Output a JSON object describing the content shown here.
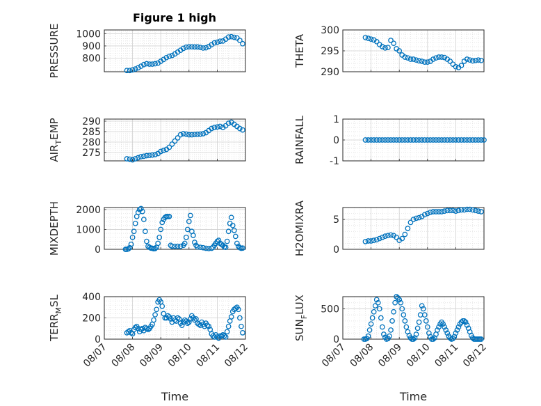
{
  "figure_title": "Figure 1 high",
  "colors": {
    "marker": "#0072BD",
    "axis": "#262626",
    "grid": "#bdbdbd"
  },
  "chart_data": [
    {
      "type": "scatter",
      "title": "Figure 1 high",
      "ylabel_parts": [
        "PRESSURE"
      ],
      "yticks": [
        800,
        900,
        1000
      ],
      "ylim": [
        690,
        1030
      ],
      "xlim": [
        0,
        5
      ],
      "xticks": [
        "08/07",
        "08/08",
        "08/09",
        "08/10",
        "08/11",
        "08/12"
      ],
      "xlabel": "",
      "x": [
        0.8,
        0.9,
        1.0,
        1.1,
        1.2,
        1.3,
        1.4,
        1.5,
        1.6,
        1.7,
        1.8,
        1.9,
        2.0,
        2.1,
        2.2,
        2.3,
        2.4,
        2.5,
        2.6,
        2.7,
        2.8,
        2.9,
        3.0,
        3.1,
        3.2,
        3.3,
        3.4,
        3.5,
        3.6,
        3.7,
        3.8,
        3.9,
        4.0,
        4.1,
        4.2,
        4.3,
        4.4,
        4.5,
        4.6,
        4.7,
        4.8,
        4.9
      ],
      "y": [
        700,
        700,
        705,
        712,
        722,
        735,
        748,
        755,
        752,
        752,
        755,
        760,
        775,
        790,
        805,
        815,
        822,
        835,
        850,
        865,
        880,
        890,
        893,
        893,
        892,
        892,
        888,
        883,
        885,
        895,
        910,
        925,
        930,
        938,
        940,
        955,
        972,
        975,
        970,
        965,
        945,
        918
      ]
    },
    {
      "type": "scatter",
      "title": "",
      "ylabel_parts": [
        "THETA"
      ],
      "yticks": [
        290,
        295,
        300
      ],
      "ylim": [
        290,
        300
      ],
      "xlim": [
        0,
        5
      ],
      "xticks": [
        "08/07",
        "08/08",
        "08/09",
        "08/10",
        "08/11",
        "08/12"
      ],
      "xlabel": "",
      "x": [
        0.8,
        0.9,
        1.0,
        1.1,
        1.2,
        1.3,
        1.4,
        1.5,
        1.6,
        1.7,
        1.8,
        1.9,
        2.0,
        2.1,
        2.2,
        2.3,
        2.4,
        2.5,
        2.6,
        2.7,
        2.8,
        2.9,
        3.0,
        3.1,
        3.2,
        3.3,
        3.4,
        3.5,
        3.6,
        3.7,
        3.8,
        3.9,
        4.0,
        4.1,
        4.2,
        4.3,
        4.4,
        4.5,
        4.6,
        4.7,
        4.8,
        4.9
      ],
      "y": [
        298.2,
        298.0,
        297.8,
        297.6,
        297.2,
        296.5,
        296.0,
        295.7,
        295.8,
        297.5,
        296.8,
        295.5,
        295.0,
        294.0,
        293.5,
        293.3,
        293.0,
        293.0,
        292.8,
        292.6,
        292.5,
        292.3,
        292.3,
        292.5,
        293.0,
        293.3,
        293.5,
        293.5,
        293.4,
        293.0,
        292.5,
        291.8,
        291.2,
        291.0,
        291.5,
        292.5,
        293.0,
        292.8,
        292.6,
        292.7,
        292.8,
        292.7
      ]
    },
    {
      "type": "scatter",
      "title": "",
      "ylabel_parts": [
        "AIR",
        "T",
        "EMP"
      ],
      "yticks": [
        275,
        280,
        285,
        290
      ],
      "ylim": [
        271,
        291
      ],
      "xlim": [
        0,
        5
      ],
      "xticks": [
        "08/07",
        "08/08",
        "08/09",
        "08/10",
        "08/11",
        "08/12"
      ],
      "xlabel": "",
      "x": [
        0.8,
        0.9,
        1.0,
        1.1,
        1.2,
        1.3,
        1.4,
        1.5,
        1.6,
        1.7,
        1.8,
        1.9,
        2.0,
        2.1,
        2.2,
        2.3,
        2.4,
        2.5,
        2.6,
        2.7,
        2.8,
        2.9,
        3.0,
        3.1,
        3.2,
        3.3,
        3.4,
        3.5,
        3.6,
        3.7,
        3.8,
        3.9,
        4.0,
        4.1,
        4.2,
        4.3,
        4.4,
        4.5,
        4.6,
        4.7,
        4.8,
        4.9
      ],
      "y": [
        272.0,
        271.8,
        271.5,
        272.0,
        272.5,
        273.0,
        273.2,
        273.5,
        273.6,
        273.8,
        274.0,
        274.5,
        275.5,
        276.0,
        276.5,
        277.5,
        279.0,
        280.5,
        282.0,
        283.5,
        284.0,
        283.8,
        283.5,
        283.5,
        283.6,
        283.7,
        283.8,
        284.0,
        284.5,
        285.5,
        286.5,
        287.0,
        287.2,
        287.5,
        287.0,
        287.8,
        289.0,
        289.5,
        288.5,
        287.5,
        286.5,
        285.8
      ]
    },
    {
      "type": "scatter",
      "title": "",
      "ylabel_parts": [
        "RAINFALL"
      ],
      "yticks": [
        -1,
        0,
        1
      ],
      "ylim": [
        -1,
        1
      ],
      "xlim": [
        0,
        5
      ],
      "xticks": [
        "08/07",
        "08/08",
        "08/09",
        "08/10",
        "08/11",
        "08/12"
      ],
      "xlabel": "",
      "x": [
        0.8,
        0.9,
        1.0,
        1.1,
        1.2,
        1.3,
        1.4,
        1.5,
        1.6,
        1.7,
        1.8,
        1.9,
        2.0,
        2.1,
        2.2,
        2.3,
        2.4,
        2.5,
        2.6,
        2.7,
        2.8,
        2.9,
        3.0,
        3.1,
        3.2,
        3.3,
        3.4,
        3.5,
        3.6,
        3.7,
        3.8,
        3.9,
        4.0,
        4.1,
        4.2,
        4.3,
        4.4,
        4.5,
        4.6,
        4.7,
        4.8,
        4.9,
        5.0
      ],
      "y": [
        0,
        0,
        0,
        0,
        0,
        0,
        0,
        0,
        0,
        0,
        0,
        0,
        0,
        0,
        0,
        0,
        0,
        0,
        0,
        0,
        0,
        0,
        0,
        0,
        0,
        0,
        0,
        0,
        0,
        0,
        0,
        0,
        0,
        0,
        0,
        0,
        0,
        0,
        0,
        0,
        0,
        0,
        0
      ]
    },
    {
      "type": "scatter",
      "title": "",
      "ylabel_parts": [
        "MIXDEPTH"
      ],
      "yticks": [
        0,
        1000,
        2000
      ],
      "ylim": [
        0,
        2100
      ],
      "xlim": [
        0,
        5
      ],
      "xticks": [
        "08/07",
        "08/08",
        "08/09",
        "08/10",
        "08/11",
        "08/12"
      ],
      "xlabel": "",
      "x": [
        0.75,
        0.8,
        0.85,
        0.9,
        0.95,
        1.0,
        1.05,
        1.1,
        1.15,
        1.2,
        1.25,
        1.3,
        1.35,
        1.4,
        1.45,
        1.5,
        1.55,
        1.6,
        1.65,
        1.7,
        1.75,
        1.8,
        1.85,
        1.9,
        1.95,
        2.0,
        2.05,
        2.1,
        2.15,
        2.2,
        2.25,
        2.3,
        2.35,
        2.4,
        2.5,
        2.6,
        2.7,
        2.8,
        2.85,
        2.9,
        2.95,
        3.0,
        3.05,
        3.1,
        3.15,
        3.2,
        3.25,
        3.3,
        3.4,
        3.5,
        3.6,
        3.7,
        3.8,
        3.85,
        3.9,
        3.95,
        4.0,
        4.05,
        4.1,
        4.15,
        4.2,
        4.25,
        4.3,
        4.35,
        4.4,
        4.45,
        4.5,
        4.55,
        4.6,
        4.65,
        4.7,
        4.75,
        4.8,
        4.85,
        4.9
      ],
      "y": [
        0,
        0,
        20,
        80,
        250,
        600,
        900,
        1300,
        1650,
        1850,
        2000,
        2050,
        1900,
        1500,
        900,
        400,
        150,
        100,
        60,
        50,
        30,
        40,
        100,
        300,
        600,
        1000,
        1350,
        1500,
        1600,
        1650,
        1650,
        1650,
        200,
        150,
        150,
        150,
        150,
        200,
        300,
        600,
        1000,
        1400,
        1700,
        900,
        700,
        350,
        200,
        120,
        100,
        80,
        50,
        40,
        50,
        100,
        200,
        300,
        400,
        450,
        300,
        250,
        200,
        120,
        100,
        400,
        900,
        1300,
        1600,
        1200,
        950,
        650,
        300,
        150,
        80,
        50,
        60
      ]
    },
    {
      "type": "scatter",
      "title": "",
      "ylabel_parts": [
        "H2OMIXRA"
      ],
      "yticks": [
        0,
        5
      ],
      "ylim": [
        0,
        7
      ],
      "xlim": [
        0,
        5
      ],
      "xticks": [
        "08/07",
        "08/08",
        "08/09",
        "08/10",
        "08/11",
        "08/12"
      ],
      "xlabel": "",
      "x": [
        0.8,
        0.9,
        1.0,
        1.1,
        1.2,
        1.3,
        1.4,
        1.5,
        1.6,
        1.7,
        1.8,
        1.9,
        2.0,
        2.1,
        2.2,
        2.3,
        2.4,
        2.5,
        2.6,
        2.7,
        2.8,
        2.9,
        3.0,
        3.1,
        3.2,
        3.3,
        3.4,
        3.5,
        3.6,
        3.7,
        3.8,
        3.9,
        4.0,
        4.1,
        4.2,
        4.3,
        4.4,
        4.5,
        4.6,
        4.7,
        4.8,
        4.9
      ],
      "y": [
        1.3,
        1.4,
        1.4,
        1.5,
        1.6,
        1.8,
        2.0,
        2.2,
        2.3,
        2.4,
        2.3,
        2.0,
        1.5,
        1.8,
        2.5,
        3.5,
        4.5,
        5.0,
        5.2,
        5.3,
        5.5,
        5.8,
        6.0,
        6.2,
        6.3,
        6.3,
        6.3,
        6.3,
        6.4,
        6.5,
        6.5,
        6.5,
        6.4,
        6.5,
        6.6,
        6.6,
        6.7,
        6.7,
        6.6,
        6.5,
        6.4,
        6.3
      ]
    },
    {
      "type": "scatter",
      "title": "",
      "ylabel_parts": [
        "TERR",
        "M",
        "SL"
      ],
      "yticks": [
        0,
        200,
        400
      ],
      "ylim": [
        0,
        400
      ],
      "xlim": [
        0,
        5
      ],
      "xticks": [
        "08/07",
        "08/08",
        "08/09",
        "08/10",
        "08/11",
        "08/12"
      ],
      "xlabel": "Time",
      "x": [
        0.8,
        0.85,
        0.9,
        0.95,
        1.0,
        1.05,
        1.1,
        1.15,
        1.2,
        1.25,
        1.3,
        1.35,
        1.4,
        1.45,
        1.5,
        1.55,
        1.6,
        1.65,
        1.7,
        1.75,
        1.8,
        1.85,
        1.9,
        1.95,
        2.0,
        2.05,
        2.1,
        2.15,
        2.2,
        2.25,
        2.3,
        2.35,
        2.4,
        2.45,
        2.5,
        2.55,
        2.6,
        2.65,
        2.7,
        2.75,
        2.8,
        2.85,
        2.9,
        2.95,
        3.0,
        3.05,
        3.1,
        3.15,
        3.2,
        3.25,
        3.3,
        3.35,
        3.4,
        3.45,
        3.5,
        3.55,
        3.6,
        3.65,
        3.7,
        3.75,
        3.8,
        3.85,
        3.9,
        3.95,
        4.0,
        4.05,
        4.1,
        4.15,
        4.2,
        4.25,
        4.3,
        4.35,
        4.4,
        4.45,
        4.5,
        4.55,
        4.6,
        4.65,
        4.7,
        4.75,
        4.8,
        4.85,
        4.9
      ],
      "y": [
        60,
        70,
        80,
        60,
        50,
        90,
        110,
        120,
        100,
        70,
        90,
        100,
        80,
        110,
        100,
        90,
        100,
        120,
        140,
        180,
        230,
        280,
        350,
        370,
        350,
        310,
        240,
        200,
        200,
        220,
        210,
        190,
        160,
        200,
        180,
        170,
        200,
        190,
        150,
        130,
        160,
        180,
        170,
        150,
        160,
        190,
        220,
        200,
        180,
        190,
        150,
        140,
        130,
        160,
        140,
        120,
        150,
        130,
        120,
        90,
        50,
        30,
        20,
        40,
        20,
        10,
        30,
        30,
        40,
        30,
        20,
        70,
        120,
        170,
        210,
        260,
        280,
        290,
        300,
        280,
        200,
        120,
        60
      ]
    },
    {
      "type": "scatter",
      "title": "",
      "ylabel_parts": [
        "SUN",
        "F",
        "LUX"
      ],
      "yticks": [
        0,
        500
      ],
      "ylim": [
        0,
        700
      ],
      "xlim": [
        0,
        5
      ],
      "xticks": [
        "08/07",
        "08/08",
        "08/09",
        "08/10",
        "08/11",
        "08/12"
      ],
      "xlabel": "Time",
      "x": [
        0.75,
        0.8,
        0.85,
        0.9,
        0.95,
        1.0,
        1.05,
        1.1,
        1.15,
        1.2,
        1.25,
        1.3,
        1.35,
        1.4,
        1.45,
        1.5,
        1.55,
        1.6,
        1.65,
        1.7,
        1.75,
        1.8,
        1.85,
        1.9,
        1.95,
        2.0,
        2.05,
        2.1,
        2.15,
        2.2,
        2.25,
        2.3,
        2.35,
        2.4,
        2.45,
        2.5,
        2.55,
        2.6,
        2.65,
        2.7,
        2.75,
        2.8,
        2.85,
        2.9,
        2.95,
        3.0,
        3.05,
        3.1,
        3.15,
        3.2,
        3.25,
        3.3,
        3.35,
        3.4,
        3.45,
        3.5,
        3.55,
        3.6,
        3.65,
        3.7,
        3.75,
        3.8,
        3.85,
        3.9,
        3.95,
        4.0,
        4.05,
        4.1,
        4.15,
        4.2,
        4.25,
        4.3,
        4.35,
        4.4,
        4.45,
        4.5,
        4.55,
        4.6,
        4.65,
        4.7,
        4.75,
        4.8,
        4.85,
        4.9
      ],
      "y": [
        0,
        0,
        10,
        50,
        150,
        250,
        350,
        450,
        550,
        650,
        600,
        500,
        350,
        200,
        80,
        30,
        0,
        10,
        50,
        150,
        300,
        450,
        600,
        700,
        680,
        650,
        600,
        500,
        400,
        300,
        200,
        120,
        60,
        20,
        0,
        0,
        20,
        80,
        180,
        280,
        400,
        550,
        500,
        400,
        300,
        200,
        100,
        40,
        0,
        0,
        20,
        80,
        150,
        200,
        250,
        280,
        250,
        200,
        150,
        100,
        50,
        20,
        0,
        10,
        40,
        100,
        150,
        200,
        250,
        280,
        300,
        300,
        280,
        230,
        180,
        120,
        60,
        20,
        0,
        0,
        0,
        0,
        0,
        0
      ]
    }
  ]
}
